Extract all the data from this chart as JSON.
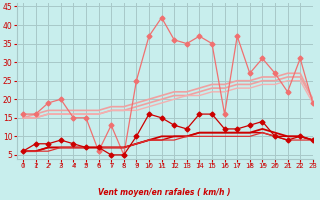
{
  "title": "",
  "xlabel": "Vent moyen/en rafales ( km/h )",
  "ylabel": "",
  "bg_color": "#c8eeed",
  "grid_color": "#a8c8c8",
  "xlim": [
    -0.5,
    23
  ],
  "ylim": [
    4,
    46
  ],
  "yticks": [
    5,
    10,
    15,
    20,
    25,
    30,
    35,
    40,
    45
  ],
  "xticks": [
    0,
    1,
    2,
    3,
    4,
    5,
    6,
    7,
    8,
    9,
    10,
    11,
    12,
    13,
    14,
    15,
    16,
    17,
    18,
    19,
    20,
    21,
    22,
    23
  ],
  "lines_light_smooth": [
    {
      "x": [
        0,
        1,
        2,
        3,
        4,
        5,
        6,
        7,
        8,
        9,
        10,
        11,
        12,
        13,
        14,
        15,
        16,
        17,
        18,
        19,
        20,
        21,
        22,
        23
      ],
      "y": [
        15,
        16,
        17,
        17,
        17,
        17,
        17,
        18,
        18,
        19,
        20,
        21,
        22,
        22,
        23,
        24,
        24,
        25,
        25,
        26,
        26,
        27,
        27,
        20
      ],
      "color": "#f0a0a0",
      "lw": 1.2
    },
    {
      "x": [
        0,
        1,
        2,
        3,
        4,
        5,
        6,
        7,
        8,
        9,
        10,
        11,
        12,
        13,
        14,
        15,
        16,
        17,
        18,
        19,
        20,
        21,
        22,
        23
      ],
      "y": [
        15,
        15,
        16,
        16,
        16,
        16,
        16,
        17,
        17,
        18,
        19,
        20,
        21,
        21,
        22,
        23,
        23,
        24,
        24,
        25,
        25,
        26,
        26,
        20
      ],
      "color": "#f0a0a0",
      "lw": 1.2
    },
    {
      "x": [
        0,
        1,
        2,
        3,
        4,
        5,
        6,
        7,
        8,
        9,
        10,
        11,
        12,
        13,
        14,
        15,
        16,
        17,
        18,
        19,
        20,
        21,
        22,
        23
      ],
      "y": [
        15,
        15,
        16,
        16,
        16,
        16,
        16,
        17,
        17,
        17,
        18,
        19,
        20,
        21,
        21,
        22,
        22,
        23,
        23,
        24,
        24,
        25,
        25,
        19
      ],
      "color": "#f4b0b0",
      "lw": 1.0
    }
  ],
  "line_jagged_salmon": {
    "x": [
      0,
      1,
      2,
      3,
      4,
      5,
      6,
      7,
      8,
      9,
      10,
      11,
      12,
      13,
      14,
      15,
      16,
      17,
      18,
      19,
      20,
      21,
      22,
      23
    ],
    "y": [
      16,
      16,
      19,
      20,
      15,
      15,
      6,
      13,
      5,
      25,
      37,
      42,
      36,
      35,
      37,
      35,
      16,
      37,
      27,
      31,
      27,
      22,
      31,
      19
    ],
    "color": "#f07070",
    "marker": "D",
    "lw": 0.9,
    "ms": 2.5
  },
  "lines_dark_smooth": [
    {
      "x": [
        0,
        1,
        2,
        3,
        4,
        5,
        6,
        7,
        8,
        9,
        10,
        11,
        12,
        13,
        14,
        15,
        16,
        17,
        18,
        19,
        20,
        21,
        22,
        23
      ],
      "y": [
        6,
        6,
        7,
        7,
        7,
        7,
        7,
        7,
        7,
        8,
        9,
        10,
        10,
        10,
        11,
        11,
        11,
        11,
        11,
        12,
        11,
        10,
        10,
        9
      ],
      "color": "#cc0000",
      "lw": 1.3
    },
    {
      "x": [
        0,
        1,
        2,
        3,
        4,
        5,
        6,
        7,
        8,
        9,
        10,
        11,
        12,
        13,
        14,
        15,
        16,
        17,
        18,
        19,
        20,
        21,
        22,
        23
      ],
      "y": [
        6,
        6,
        7,
        7,
        7,
        7,
        7,
        7,
        7,
        8,
        9,
        9,
        10,
        10,
        11,
        11,
        11,
        11,
        11,
        11,
        10,
        10,
        10,
        9
      ],
      "color": "#cc0000",
      "lw": 1.0
    },
    {
      "x": [
        0,
        1,
        2,
        3,
        4,
        5,
        6,
        7,
        8,
        9,
        10,
        11,
        12,
        13,
        14,
        15,
        16,
        17,
        18,
        19,
        20,
        21,
        22,
        23
      ],
      "y": [
        6,
        6,
        6,
        7,
        7,
        7,
        7,
        7,
        7,
        8,
        9,
        9,
        9,
        10,
        10,
        10,
        10,
        10,
        10,
        11,
        10,
        9,
        9,
        9
      ],
      "color": "#dd3333",
      "lw": 0.9
    }
  ],
  "line_jagged_dark": {
    "x": [
      0,
      1,
      2,
      3,
      4,
      5,
      6,
      7,
      8,
      9,
      10,
      11,
      12,
      13,
      14,
      15,
      16,
      17,
      18,
      19,
      20,
      21,
      22,
      23
    ],
    "y": [
      6,
      8,
      8,
      9,
      8,
      7,
      7,
      5,
      5,
      10,
      16,
      15,
      13,
      12,
      16,
      16,
      12,
      12,
      13,
      14,
      10,
      9,
      10,
      9
    ],
    "color": "#cc0000",
    "marker": "D",
    "lw": 0.9,
    "ms": 2.5
  },
  "arrow_color": "#cc0000",
  "tick_color": "#cc0000",
  "label_color": "#cc0000"
}
